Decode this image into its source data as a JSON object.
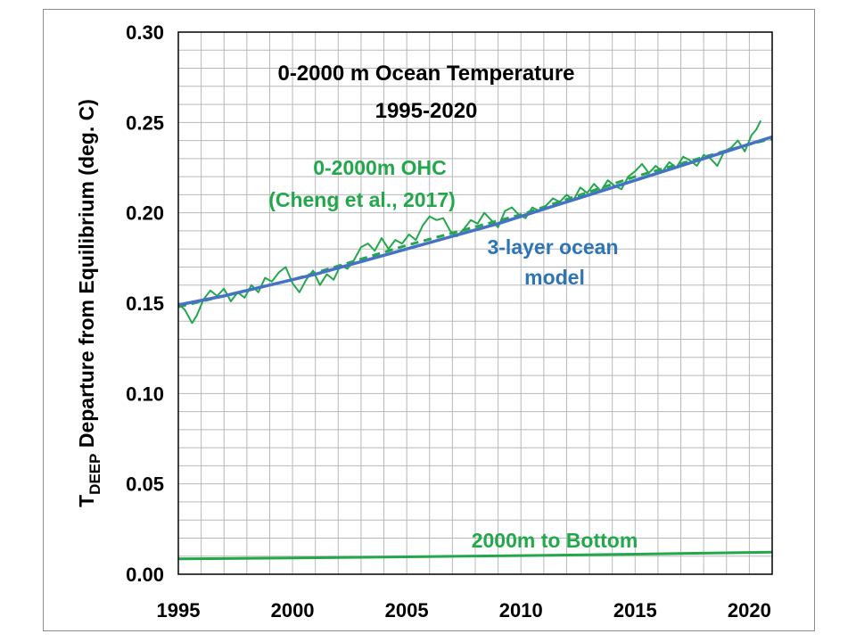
{
  "chart_data": {
    "type": "line",
    "title": [
      "0-2000 m Ocean Temperature",
      "1995-2020"
    ],
    "ylabel": {
      "main": "T",
      "sub": "DEEP",
      "rest": " Departure from Equilibrium (deg. C)"
    },
    "xlabel": "",
    "xlim": [
      1995,
      2021
    ],
    "ylim": [
      0,
      0.3
    ],
    "x_ticks": [
      1995,
      2000,
      2005,
      2010,
      2015,
      2020
    ],
    "y_ticks": [
      0.0,
      0.05,
      0.1,
      0.15,
      0.2,
      0.25,
      0.3
    ],
    "y_tick_labels": [
      "0.00",
      "0.05",
      "0.10",
      "0.15",
      "0.20",
      "0.25",
      "0.30"
    ],
    "grid": true,
    "colors": {
      "ohc": "#22a84a",
      "model": "#4472c4",
      "bottom": "#22a84a",
      "grid": "#b8b8b8"
    },
    "series": [
      {
        "id": "ohc",
        "style": "solid-noisy",
        "x": [
          1995.0,
          1995.3,
          1995.6,
          1995.8,
          1996.1,
          1996.4,
          1996.7,
          1997.0,
          1997.3,
          1997.6,
          1997.9,
          1998.2,
          1998.5,
          1998.8,
          1999.1,
          1999.4,
          1999.7,
          2000.0,
          2000.3,
          2000.6,
          2000.9,
          2001.2,
          2001.5,
          2001.8,
          2002.1,
          2002.4,
          2002.7,
          2003.0,
          2003.3,
          2003.6,
          2003.9,
          2004.2,
          2004.5,
          2004.8,
          2005.1,
          2005.4,
          2005.7,
          2006.0,
          2006.3,
          2006.6,
          2006.9,
          2007.2,
          2007.5,
          2007.8,
          2008.1,
          2008.4,
          2008.7,
          2009.0,
          2009.3,
          2009.6,
          2009.9,
          2010.2,
          2010.5,
          2010.8,
          2011.1,
          2011.4,
          2011.7,
          2012.0,
          2012.3,
          2012.6,
          2012.9,
          2013.2,
          2013.5,
          2013.8,
          2014.1,
          2014.4,
          2014.7,
          2015.0,
          2015.3,
          2015.6,
          2015.9,
          2016.2,
          2016.5,
          2016.8,
          2017.1,
          2017.4,
          2017.7,
          2018.0,
          2018.3,
          2018.6,
          2018.9,
          2019.2,
          2019.5,
          2019.8,
          2020.1,
          2020.3,
          2020.5
        ],
        "y": [
          0.15,
          0.146,
          0.139,
          0.143,
          0.152,
          0.157,
          0.154,
          0.158,
          0.151,
          0.156,
          0.153,
          0.16,
          0.156,
          0.164,
          0.162,
          0.167,
          0.17,
          0.161,
          0.156,
          0.163,
          0.168,
          0.16,
          0.166,
          0.163,
          0.171,
          0.169,
          0.174,
          0.181,
          0.183,
          0.179,
          0.186,
          0.18,
          0.185,
          0.183,
          0.188,
          0.185,
          0.193,
          0.198,
          0.196,
          0.197,
          0.19,
          0.187,
          0.191,
          0.196,
          0.194,
          0.2,
          0.196,
          0.192,
          0.201,
          0.203,
          0.199,
          0.197,
          0.203,
          0.201,
          0.204,
          0.208,
          0.206,
          0.21,
          0.207,
          0.214,
          0.211,
          0.216,
          0.212,
          0.218,
          0.215,
          0.213,
          0.22,
          0.223,
          0.227,
          0.222,
          0.226,
          0.223,
          0.228,
          0.225,
          0.231,
          0.229,
          0.226,
          0.232,
          0.23,
          0.226,
          0.234,
          0.236,
          0.24,
          0.234,
          0.243,
          0.246,
          0.251
        ]
      },
      {
        "id": "ohc-trend",
        "style": "dashed",
        "x": [
          1995,
          2000,
          2005,
          2010,
          2015,
          2020,
          2021
        ],
        "y": [
          0.148,
          0.163,
          0.182,
          0.199,
          0.22,
          0.238,
          0.241
        ]
      },
      {
        "id": "model",
        "style": "solid-thick",
        "x": [
          1995,
          1997,
          1999,
          2001,
          2003,
          2005,
          2007,
          2009,
          2011,
          2013,
          2015,
          2017,
          2019,
          2021
        ],
        "y": [
          0.149,
          0.154,
          0.16,
          0.166,
          0.173,
          0.18,
          0.187,
          0.194,
          0.202,
          0.21,
          0.218,
          0.226,
          0.234,
          0.242
        ]
      },
      {
        "id": "bottom",
        "style": "solid",
        "x": [
          1995,
          2000,
          2005,
          2010,
          2015,
          2021
        ],
        "y": [
          0.0085,
          0.009,
          0.0096,
          0.0103,
          0.0111,
          0.0122
        ]
      }
    ],
    "annotations": {
      "ohc": [
        "0-2000m OHC",
        "(Cheng et al., 2017)"
      ],
      "model": [
        "3-layer ocean",
        "model"
      ],
      "bottom": "2000m to Bottom"
    }
  }
}
